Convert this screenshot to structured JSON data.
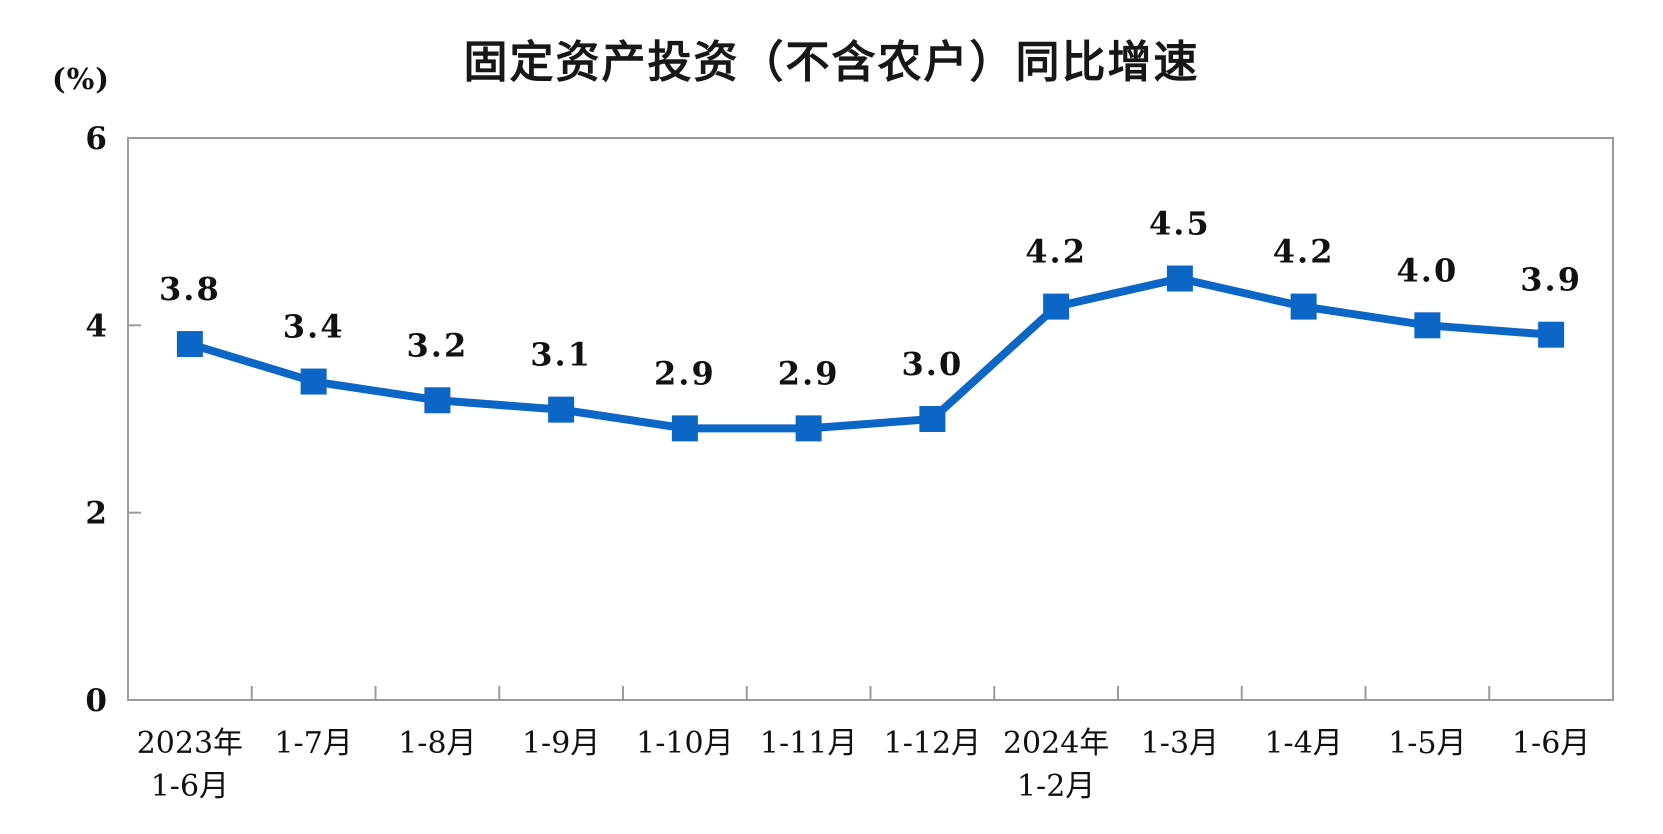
{
  "title": "固定资产投资（不含农户）同比增速",
  "unit_label": "(%)",
  "chart_data": {
    "type": "line",
    "title": "固定资产投资（不含农户）同比增速",
    "ylabel": "(%)",
    "xlabel": "",
    "categories": [
      "2023年\n1-6月",
      "1-7月",
      "1-8月",
      "1-9月",
      "1-10月",
      "1-11月",
      "1-12月",
      "2024年\n1-2月",
      "1-3月",
      "1-4月",
      "1-5月",
      "1-6月"
    ],
    "values": [
      3.8,
      3.4,
      3.2,
      3.1,
      2.9,
      2.9,
      3.0,
      4.2,
      4.5,
      4.2,
      4.0,
      3.9
    ],
    "point_labels": [
      "3.8",
      "3.4",
      "3.2",
      "3.1",
      "2.9",
      "2.9",
      "3.0",
      "4.2",
      "4.5",
      "4.2",
      "4.0",
      "3.9"
    ],
    "ylim": [
      0,
      6
    ],
    "yticks": [
      0,
      2,
      4,
      6
    ],
    "grid": false,
    "legend_position": "none",
    "marker": "square",
    "colors": {
      "line": "#0c66c6",
      "marker": "#0c66c6",
      "axis": "#9a9a9a",
      "text": "#111111"
    }
  }
}
